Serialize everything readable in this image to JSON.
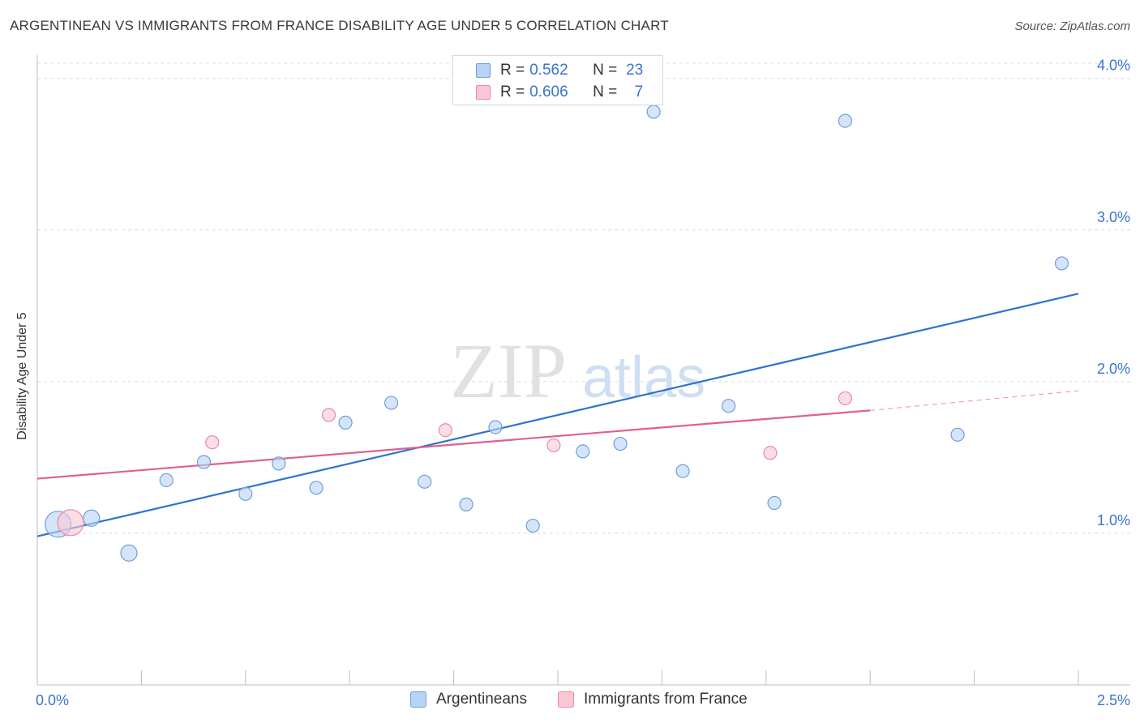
{
  "header": {
    "title": "ARGENTINEAN VS IMMIGRANTS FROM FRANCE DISABILITY AGE UNDER 5 CORRELATION CHART",
    "source": "Source: ZipAtlas.com"
  },
  "legend": {
    "rows": [
      {
        "r_label": "R =",
        "r_value": "0.562",
        "n_label": "N =",
        "n_value": "23"
      },
      {
        "r_label": "R =",
        "r_value": "0.606",
        "n_label": "N =",
        "n_value": "7"
      }
    ]
  },
  "bottom_legend": {
    "series1": "Argentineans",
    "series2": "Immigrants from France"
  },
  "watermark": {
    "zip": "ZIP",
    "atlas": "atlas"
  },
  "colors": {
    "blue_fill": "#b8d3f5",
    "blue_stroke": "#6f9fd8",
    "blue_line": "#2f72d0",
    "pink_fill": "#f9c6d4",
    "pink_stroke": "#e88aa6",
    "pink_line": "#e0608b",
    "axis_text": "#3a74cf"
  },
  "chart_data": {
    "type": "scatter",
    "title": "ARGENTINEAN VS IMMIGRANTS FROM FRANCE DISABILITY AGE UNDER 5 CORRELATION CHART",
    "xlabel": "",
    "ylabel": "Disability Age Under 5",
    "xlim": [
      0.0,
      2.5
    ],
    "ylim": [
      0.0,
      4.1
    ],
    "x_tick_labels": [
      "0.0%",
      "2.5%"
    ],
    "y_ticks": [
      1.0,
      2.0,
      3.0,
      4.0
    ],
    "y_tick_labels": [
      "1.0%",
      "2.0%",
      "3.0%",
      "4.0%"
    ],
    "grid": true,
    "series": [
      {
        "name": "Argentineans",
        "r": 0.562,
        "n": 23,
        "points": [
          {
            "x": 0.05,
            "y": 1.06,
            "size": "large"
          },
          {
            "x": 0.13,
            "y": 1.1,
            "size": "medium"
          },
          {
            "x": 0.22,
            "y": 0.87,
            "size": "medium"
          },
          {
            "x": 0.31,
            "y": 1.35,
            "size": "small"
          },
          {
            "x": 0.4,
            "y": 1.47,
            "size": "small"
          },
          {
            "x": 0.5,
            "y": 1.26,
            "size": "small"
          },
          {
            "x": 0.58,
            "y": 1.46,
            "size": "small"
          },
          {
            "x": 0.67,
            "y": 1.3,
            "size": "small"
          },
          {
            "x": 0.74,
            "y": 1.73,
            "size": "small"
          },
          {
            "x": 0.85,
            "y": 1.86,
            "size": "small"
          },
          {
            "x": 0.93,
            "y": 1.34,
            "size": "small"
          },
          {
            "x": 1.03,
            "y": 1.19,
            "size": "small"
          },
          {
            "x": 1.1,
            "y": 1.7,
            "size": "small"
          },
          {
            "x": 1.19,
            "y": 1.05,
            "size": "small"
          },
          {
            "x": 1.31,
            "y": 1.54,
            "size": "small"
          },
          {
            "x": 1.4,
            "y": 1.59,
            "size": "small"
          },
          {
            "x": 1.48,
            "y": 3.78,
            "size": "small"
          },
          {
            "x": 1.55,
            "y": 1.41,
            "size": "small"
          },
          {
            "x": 1.66,
            "y": 1.84,
            "size": "small"
          },
          {
            "x": 1.77,
            "y": 1.2,
            "size": "small"
          },
          {
            "x": 1.94,
            "y": 3.72,
            "size": "small"
          },
          {
            "x": 2.21,
            "y": 1.65,
            "size": "small"
          },
          {
            "x": 2.46,
            "y": 2.78,
            "size": "small"
          }
        ],
        "trend": {
          "x0": 0.0,
          "y0": 0.98,
          "x1": 2.5,
          "y1": 2.58
        }
      },
      {
        "name": "Immigrants from France",
        "r": 0.606,
        "n": 7,
        "points": [
          {
            "x": 0.08,
            "y": 1.07,
            "size": "large"
          },
          {
            "x": 0.42,
            "y": 1.6,
            "size": "small"
          },
          {
            "x": 0.7,
            "y": 1.78,
            "size": "small"
          },
          {
            "x": 0.98,
            "y": 1.68,
            "size": "small"
          },
          {
            "x": 1.24,
            "y": 1.58,
            "size": "small"
          },
          {
            "x": 1.76,
            "y": 1.53,
            "size": "small"
          },
          {
            "x": 1.94,
            "y": 1.89,
            "size": "small"
          }
        ],
        "trend": {
          "x0": 0.0,
          "y0": 1.36,
          "x1": 2.0,
          "y1": 1.81,
          "dashed_to_x": 2.5,
          "dashed_to_y": 1.94
        }
      }
    ]
  }
}
